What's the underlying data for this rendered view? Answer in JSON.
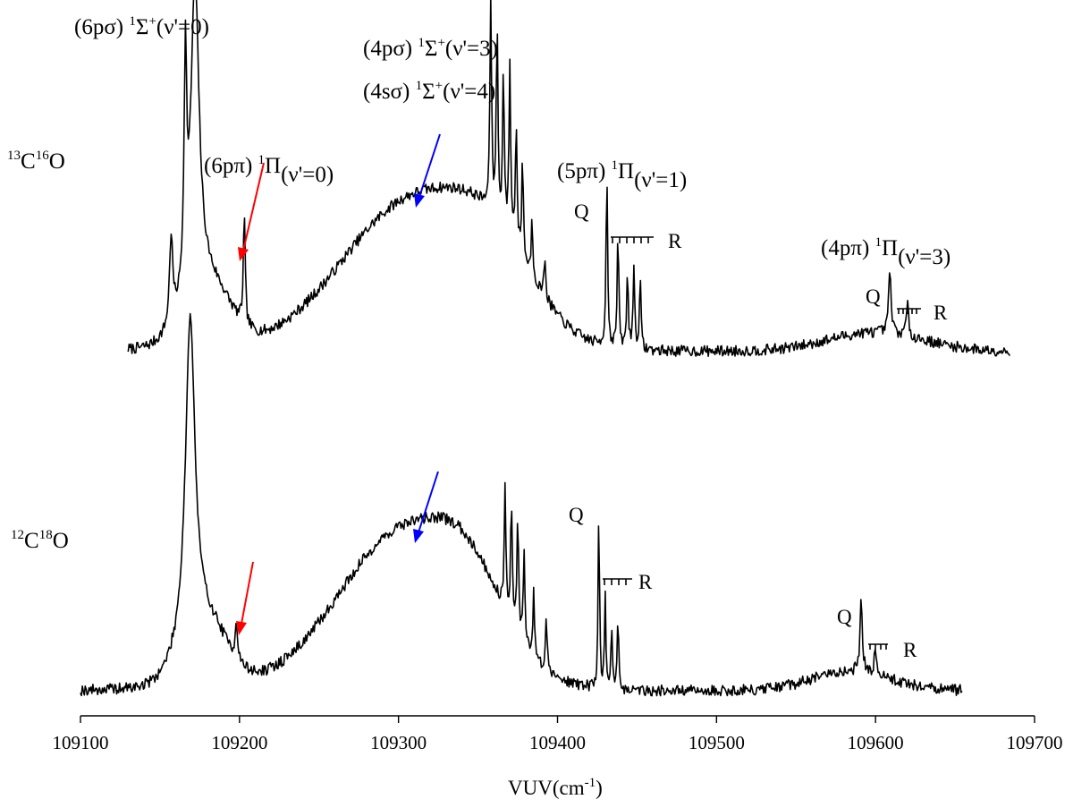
{
  "chart_data": {
    "type": "line",
    "xlabel": "VUV(cm",
    "xlabel_sup": "-1",
    "xlabel_end": ")",
    "xlim": [
      109100,
      109700
    ],
    "xticks": [
      109100,
      109200,
      109300,
      109400,
      109500,
      109600,
      109700
    ],
    "yaxis": "none (relative intensity, traces offset vertically)",
    "series": [
      {
        "name": "13C16O",
        "label_sup1": "13",
        "label_main1": "C",
        "label_sup2": "16",
        "label_main2": "O",
        "x_range": [
          109130,
          109685
        ],
        "baseline": 0.05,
        "peaks": [
          {
            "x": 109172,
            "h": 1.0,
            "w": 3.2
          },
          {
            "x": 109166,
            "h": 0.7,
            "w": 1.0
          },
          {
            "x": 109157,
            "h": 0.28,
            "w": 1.2
          },
          {
            "x": 109203,
            "h": 0.35,
            "w": 0.7
          },
          {
            "x": 109358,
            "h": 0.68,
            "w": 0.6
          },
          {
            "x": 109362,
            "h": 0.62,
            "w": 0.6
          },
          {
            "x": 109366,
            "h": 0.5,
            "w": 0.6
          },
          {
            "x": 109370,
            "h": 0.55,
            "w": 0.6
          },
          {
            "x": 109374,
            "h": 0.4,
            "w": 0.6
          },
          {
            "x": 109378,
            "h": 0.32,
            "w": 0.6
          },
          {
            "x": 109384,
            "h": 0.18,
            "w": 0.6
          },
          {
            "x": 109392,
            "h": 0.14,
            "w": 0.6
          },
          {
            "x": 109431,
            "h": 0.55,
            "w": 0.6
          },
          {
            "x": 109438,
            "h": 0.36,
            "w": 0.6
          },
          {
            "x": 109444,
            "h": 0.24,
            "w": 0.6
          },
          {
            "x": 109448,
            "h": 0.26,
            "w": 0.6
          },
          {
            "x": 109452,
            "h": 0.22,
            "w": 0.6
          },
          {
            "x": 109609,
            "h": 0.2,
            "w": 0.9
          },
          {
            "x": 109620,
            "h": 0.1,
            "w": 0.9
          }
        ],
        "bands": [
          {
            "x": 109310,
            "h": 0.48,
            "w": 45
          },
          {
            "x": 109180,
            "h": 0.2,
            "w": 14
          },
          {
            "x": 109360,
            "h": 0.18,
            "w": 25
          },
          {
            "x": 109600,
            "h": 0.06,
            "w": 30
          }
        ]
      },
      {
        "name": "12C18O",
        "label_sup1": "12",
        "label_main1": "C",
        "label_sup2": "18",
        "label_main2": "O",
        "x_range": [
          109100,
          109655
        ],
        "baseline": 0.05,
        "peaks": [
          {
            "x": 109169,
            "h": 1.0,
            "w": 3.6
          },
          {
            "x": 109198,
            "h": 0.12,
            "w": 0.8
          },
          {
            "x": 109367,
            "h": 0.4,
            "w": 0.6
          },
          {
            "x": 109371,
            "h": 0.38,
            "w": 0.6
          },
          {
            "x": 109375,
            "h": 0.36,
            "w": 0.6
          },
          {
            "x": 109379,
            "h": 0.3,
            "w": 0.6
          },
          {
            "x": 109385,
            "h": 0.2,
            "w": 0.6
          },
          {
            "x": 109393,
            "h": 0.16,
            "w": 0.6
          },
          {
            "x": 109426,
            "h": 0.58,
            "w": 0.5
          },
          {
            "x": 109430,
            "h": 0.28,
            "w": 0.5
          },
          {
            "x": 109434,
            "h": 0.2,
            "w": 0.5
          },
          {
            "x": 109438,
            "h": 0.24,
            "w": 0.5
          },
          {
            "x": 109591,
            "h": 0.22,
            "w": 0.9
          },
          {
            "x": 109600,
            "h": 0.08,
            "w": 0.9
          }
        ],
        "bands": [
          {
            "x": 109305,
            "h": 0.5,
            "w": 42
          },
          {
            "x": 109178,
            "h": 0.2,
            "w": 14
          },
          {
            "x": 109345,
            "h": 0.15,
            "w": 20
          },
          {
            "x": 109585,
            "h": 0.06,
            "w": 25
          }
        ]
      }
    ],
    "annotations": [
      {
        "id": "a1",
        "text_pre": "(6pσ) ",
        "sup1": "1",
        "main": "Σ",
        "sup2": "+",
        "text_post": "(ν'=0)"
      },
      {
        "id": "a2",
        "text_pre": "(4pσ) ",
        "sup1": "1",
        "main": "Σ",
        "sup2": "+",
        "text_post": "(ν'=3)"
      },
      {
        "id": "a3",
        "text_pre": "(4sσ) ",
        "sup1": "1",
        "main": "Σ",
        "sup2": "+",
        "text_post": "(ν'=4)"
      },
      {
        "id": "a4",
        "text_pre": "(6pπ) ",
        "sup1": "1",
        "main": "Π",
        "sup2": "",
        "text_post": "(ν'=0)"
      },
      {
        "id": "a5",
        "text_pre": "(5pπ) ",
        "sup1": "1",
        "main": "Π",
        "sup2": "",
        "text_post": "(ν'=1)"
      },
      {
        "id": "a6",
        "text_pre": "(4pπ) ",
        "sup1": "1",
        "main": "Π",
        "sup2": "",
        "text_post": "(ν'=3)"
      }
    ],
    "branch_labels": {
      "q": "Q",
      "r": "R"
    },
    "arrows": [
      {
        "name": "red-arrow-top",
        "color": "#ff0000"
      },
      {
        "name": "blue-arrow-top",
        "color": "#0000ff"
      },
      {
        "name": "red-arrow-bottom",
        "color": "#ff0000"
      },
      {
        "name": "blue-arrow-bottom",
        "color": "#0000ff"
      }
    ]
  }
}
